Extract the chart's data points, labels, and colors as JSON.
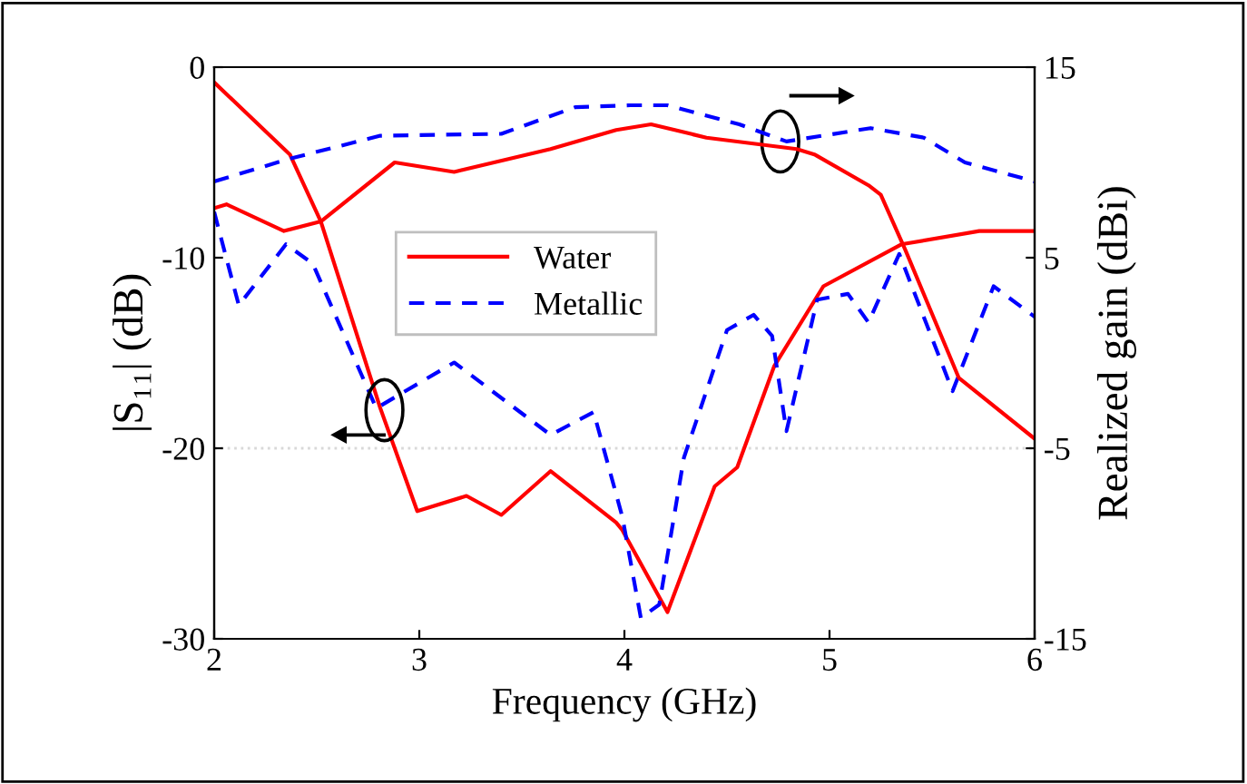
{
  "chart_data": {
    "type": "line",
    "xlabel": "Frequency (GHz)",
    "ylabel": "|S₁₁| (dB)",
    "y2label": "Realized gain (dBi)",
    "xlim": [
      2,
      6
    ],
    "xticks": [
      2,
      3,
      4,
      5,
      6
    ],
    "ylim": [
      -30,
      0
    ],
    "yticks": [
      -30,
      -20,
      -10,
      0
    ],
    "y2lim": [
      -15,
      15
    ],
    "y2ticks": [
      -15,
      -5,
      5,
      15
    ],
    "legend": "top",
    "marker": "none",
    "ref_lines": [
      {
        "axis": "y",
        "value": -20,
        "color": "#d9d9d9",
        "line_style": "dotted"
      }
    ],
    "series": [
      {
        "name": "Water",
        "color": "#ff0000",
        "line_style": "solid",
        "x": [
          2.0,
          2.37,
          2.52,
          2.81,
          2.99,
          3.23,
          3.4,
          3.64,
          3.96,
          3.99,
          4.21,
          4.44,
          4.55,
          4.73,
          4.97,
          5.35,
          5.73,
          6.0
        ],
        "values": [
          -0.8,
          -4.6,
          -8.1,
          -17.9,
          -23.3,
          -22.5,
          -23.5,
          -21.2,
          -23.9,
          -24.3,
          -28.6,
          -22.0,
          -21.0,
          -15.7,
          -11.5,
          -9.3,
          -8.6,
          -8.6
        ]
      },
      {
        "name": "Metallic",
        "color": "#0000ff",
        "line_style": "dashed",
        "x": [
          2.0,
          2.12,
          2.35,
          2.48,
          2.79,
          3.17,
          3.64,
          3.85,
          3.99,
          4.08,
          4.17,
          4.29,
          4.5,
          4.63,
          4.72,
          4.79,
          4.94,
          5.09,
          5.19,
          5.34,
          5.6,
          5.8,
          6.0
        ],
        "values": [
          -7.6,
          -12.5,
          -9.3,
          -10.3,
          -17.9,
          -15.5,
          -19.3,
          -18.1,
          -23.6,
          -28.9,
          -28.2,
          -20.5,
          -13.8,
          -13.0,
          -14.1,
          -19.1,
          -12.2,
          -11.9,
          -13.4,
          -9.8,
          -17.0,
          -11.5,
          -13.1
        ]
      },
      {
        "color": "#ff0000",
        "line_style": "solid",
        "axis": "y2",
        "x": [
          2.0,
          2.06,
          2.34,
          2.52,
          2.88,
          3.17,
          3.64,
          3.96,
          4.13,
          4.4,
          4.84,
          4.93,
          5.19,
          5.25,
          5.37,
          5.63,
          6.0
        ],
        "values": [
          7.6,
          7.8,
          6.4,
          6.9,
          10.0,
          9.5,
          10.7,
          11.7,
          12.0,
          11.3,
          10.7,
          10.4,
          8.8,
          8.3,
          5.4,
          -1.3,
          -4.5
        ]
      },
      {
        "color": "#0000ff",
        "line_style": "dashed",
        "axis": "y2",
        "x": [
          2.0,
          2.37,
          2.81,
          3.4,
          3.76,
          4.03,
          4.21,
          4.56,
          4.79,
          5.2,
          5.46,
          5.66,
          6.0
        ],
        "values": [
          9.0,
          10.2,
          11.4,
          11.5,
          12.9,
          13.0,
          13.0,
          12.0,
          11.1,
          11.8,
          11.3,
          10.0,
          9.0
        ]
      }
    ]
  }
}
